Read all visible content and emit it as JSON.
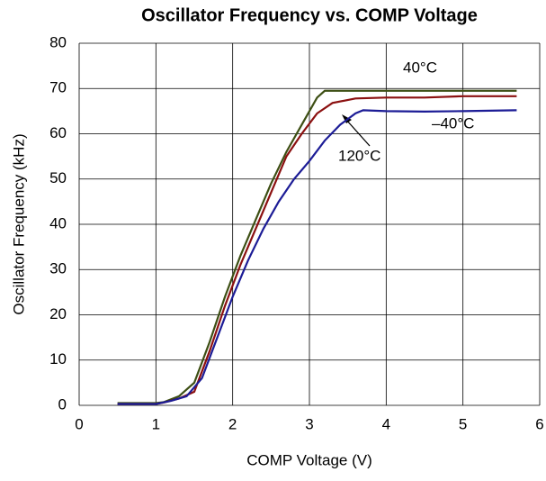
{
  "chart_data": {
    "type": "line",
    "title": "Oscillator Frequency vs. COMP Voltage",
    "x_label": "COMP Voltage (V)",
    "y_label": "Oscillator Frequency (kHz)",
    "xlim": [
      0,
      6
    ],
    "xticks": [
      0,
      1,
      2,
      3,
      4,
      5,
      6
    ],
    "ylim": [
      0,
      80
    ],
    "yticks": [
      0,
      10,
      20,
      30,
      40,
      50,
      60,
      70,
      80
    ],
    "grid": true,
    "series": [
      {
        "name": "40°C",
        "color": "#3d4f14",
        "x": [
          0.5,
          1.0,
          1.1,
          1.3,
          1.5,
          1.7,
          1.9,
          2.1,
          2.3,
          2.5,
          2.7,
          2.9,
          3.1,
          3.2,
          3.5,
          4,
          5,
          5.7
        ],
        "values": [
          0.5,
          0.5,
          0.7,
          2,
          5,
          14,
          24,
          33,
          41,
          49,
          56,
          62,
          68,
          69.5,
          69.5,
          69.5,
          69.5,
          69.5
        ]
      },
      {
        "name": "120°C",
        "color": "#8b1010",
        "x": [
          0.5,
          1.0,
          1.1,
          1.3,
          1.5,
          1.7,
          1.9,
          2.1,
          2.3,
          2.5,
          2.7,
          2.9,
          3.1,
          3.3,
          3.6,
          4,
          4.5,
          5,
          5.7
        ],
        "values": [
          0.3,
          0.3,
          0.6,
          1.5,
          3,
          12,
          22,
          31,
          39,
          47,
          55,
          60,
          64.5,
          66.8,
          67.8,
          68,
          68,
          68.3,
          68.3
        ]
      },
      {
        "name": "–40°C",
        "color": "#1c1c96",
        "x": [
          0.5,
          1.0,
          1.2,
          1.4,
          1.6,
          1.8,
          2.0,
          2.2,
          2.4,
          2.6,
          2.8,
          3.0,
          3.2,
          3.4,
          3.6,
          3.7,
          4,
          4.5,
          5,
          5.7
        ],
        "values": [
          0.3,
          0.3,
          1,
          2,
          6,
          15,
          24,
          32,
          39,
          45,
          50,
          54,
          58.5,
          62,
          64.5,
          65.2,
          65,
          64.9,
          65,
          65.2
        ]
      }
    ]
  }
}
